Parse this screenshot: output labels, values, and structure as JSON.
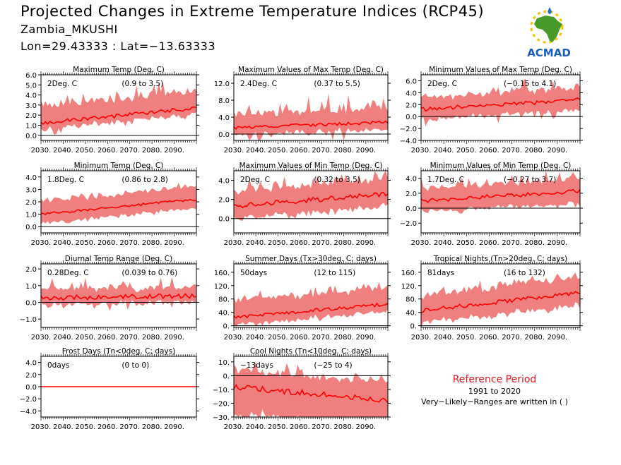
{
  "header": {
    "title": "Projected Changes in Extreme Temperature Indices (RCP45)",
    "region": "Zambia_MKUSHI",
    "coords": "Lon=29.43333 : Lat=−13.63333"
  },
  "logo": {
    "text": "ACMAD",
    "icon": "africa-map-logo"
  },
  "reference": {
    "title": "Reference Period",
    "years": "1991 to 2020",
    "note": "Very−Likely−Ranges are written in ( )"
  },
  "colors": {
    "band": "#f08080",
    "line": "#ff0000",
    "frame": "#000000",
    "reference_text": "#e8141c"
  },
  "chart_data": [
    {
      "type": "area",
      "title": "Maximum Temp (Deg. C)",
      "stat": "2Deg. C",
      "range": "(0.9 to 3.5)",
      "xlim": [
        2030,
        2100
      ],
      "ylim": [
        -0.5,
        6.0
      ],
      "yticks": [
        "6.0",
        "5.0",
        "4.0",
        "3.0",
        "2.0",
        "1.0",
        "0.0"
      ],
      "ytick_values": [
        6,
        5,
        4,
        3,
        2,
        1,
        0
      ],
      "xticks": [
        "2030.",
        "2040.",
        "2050.",
        "2060.",
        "2070.",
        "2080.",
        "2090."
      ],
      "series": [
        {
          "start": 1.2,
          "end": 2.7,
          "band_low": 0.5,
          "band_high": 1.6,
          "noise": 0.18,
          "spike_amp": 1.0
        }
      ]
    },
    {
      "type": "area",
      "title": "Maximum Values of Max Temp (Deg. C)",
      "stat": "2.4Deg. C",
      "range": "(0.37 to 5.5)",
      "xlim": [
        2030,
        2100
      ],
      "ylim": [
        -1.5,
        14.0
      ],
      "yticks": [
        "12.0",
        "8.0",
        "4.0",
        "0.0"
      ],
      "ytick_values": [
        12,
        8,
        4,
        0
      ],
      "xticks": [
        "2030.",
        "2040.",
        "2050.",
        "2060.",
        "2070.",
        "2080.",
        "2090."
      ],
      "series": [
        {
          "start": 1.5,
          "end": 2.8,
          "band_low": 1.2,
          "band_high": 2.5,
          "noise": 0.35,
          "spike_amp": 5.0
        }
      ]
    },
    {
      "type": "area",
      "title": "Minimum Values of Max Temp (Deg. C)",
      "stat": "2Deg. C",
      "range": "(−0.15 to 4.1)",
      "xlim": [
        2030,
        2100
      ],
      "ylim": [
        -4.0,
        7.0
      ],
      "yticks": [
        "6.0",
        "4.0",
        "2.0",
        "0.0",
        "−2.0",
        "−4.0"
      ],
      "ytick_values": [
        6,
        4,
        2,
        0,
        -2,
        -4
      ],
      "xticks": [
        "2030.",
        "2040.",
        "2050.",
        "2060.",
        "2070.",
        "2080.",
        "2090."
      ],
      "series": [
        {
          "start": 1.2,
          "end": 2.8,
          "band_low": 1.5,
          "band_high": 1.6,
          "noise": 0.35,
          "spike_amp": 2.5
        }
      ]
    },
    {
      "type": "area",
      "title": "Minimum Temp (Deg. C)",
      "stat": "1.8Deg. C",
      "range": "(0.86 to 2.8)",
      "xlim": [
        2030,
        2100
      ],
      "ylim": [
        -0.5,
        4.5
      ],
      "yticks": [
        "4.0",
        "3.0",
        "2.0",
        "1.0",
        "0.0"
      ],
      "ytick_values": [
        4,
        3,
        2,
        1,
        0
      ],
      "xticks": [
        "2030.",
        "2040.",
        "2050.",
        "2060.",
        "2070.",
        "2080.",
        "2090."
      ],
      "series": [
        {
          "start": 1.0,
          "end": 2.2,
          "band_low": 0.7,
          "band_high": 1.0,
          "noise": 0.1,
          "spike_amp": 0.3
        }
      ]
    },
    {
      "type": "area",
      "title": "Maximum Values of Min Temp (Deg. C)",
      "stat": "2Deg. C",
      "range": "(0.32 to 3.5)",
      "xlim": [
        2030,
        2100
      ],
      "ylim": [
        -1.5,
        5.0
      ],
      "yticks": [
        "4.0",
        "2.0",
        "0.0"
      ],
      "ytick_values": [
        4,
        2,
        0
      ],
      "xticks": [
        "2030.",
        "2040.",
        "2050.",
        "2060.",
        "2070.",
        "2080.",
        "2090."
      ],
      "series": [
        {
          "start": 1.3,
          "end": 2.6,
          "band_low": 1.2,
          "band_high": 1.5,
          "noise": 0.25,
          "spike_amp": 1.0
        }
      ]
    },
    {
      "type": "area",
      "title": "Minimum Values of Min Temp (Deg. C)",
      "stat": "1.7Deg. C",
      "range": "(−0.27 to 3.7)",
      "xlim": [
        2030,
        2100
      ],
      "ylim": [
        -3.3,
        5.0
      ],
      "yticks": [
        "4.0",
        "2.0",
        "0.0",
        "−2.0"
      ],
      "ytick_values": [
        4,
        2,
        0,
        -2
      ],
      "xticks": [
        "2030.",
        "2040.",
        "2050.",
        "2060.",
        "2070.",
        "2080.",
        "2090."
      ],
      "series": [
        {
          "start": 1.0,
          "end": 2.3,
          "band_low": 1.4,
          "band_high": 1.5,
          "noise": 0.3,
          "spike_amp": 1.5
        }
      ]
    },
    {
      "type": "area",
      "title": "Diurnal Temp Range (Deg. C)",
      "stat": "0.28Deg. C",
      "range": "(0.039 to 0.76)",
      "xlim": [
        2030,
        2100
      ],
      "ylim": [
        -1.5,
        2.3
      ],
      "yticks": [
        "2.0",
        "1.0",
        "0.0",
        "−1.0"
      ],
      "ytick_values": [
        2,
        1,
        0,
        -1
      ],
      "xticks": [
        "2030.",
        "2040.",
        "2050.",
        "2060.",
        "2070.",
        "2080.",
        "2090."
      ],
      "series": [
        {
          "start": 0.25,
          "end": 0.4,
          "band_low": 0.3,
          "band_high": 0.4,
          "noise": 0.15,
          "spike_amp": 0.9
        }
      ]
    },
    {
      "type": "area",
      "title": "Summer Days (Tx>30deg. C; days)",
      "stat": "50days",
      "range": "(12 to 115)",
      "xlim": [
        2030,
        2100
      ],
      "ylim": [
        -5,
        185
      ],
      "yticks": [
        "160.",
        "120.",
        "80.",
        "40.",
        "0."
      ],
      "ytick_values": [
        160,
        120,
        80,
        40,
        0
      ],
      "xticks": [
        "2030.",
        "2040.",
        "2050.",
        "2060.",
        "2070.",
        "2080.",
        "2090."
      ],
      "series": [
        {
          "start": 25,
          "end": 65,
          "band_low": 20,
          "band_high": 45,
          "noise": 5,
          "spike_amp": 25
        }
      ]
    },
    {
      "type": "area",
      "title": "Tropical Nights (Tn>20deg. C; days)",
      "stat": "81days",
      "range": "(16 to 132)",
      "xlim": [
        2030,
        2100
      ],
      "ylim": [
        -5,
        185
      ],
      "yticks": [
        "160.",
        "120.",
        "80.",
        "40.",
        "0."
      ],
      "ytick_values": [
        160,
        120,
        80,
        40,
        0
      ],
      "xticks": [
        "2030.",
        "2040.",
        "2050.",
        "2060.",
        "2070.",
        "2080.",
        "2090."
      ],
      "series": [
        {
          "start": 45,
          "end": 100,
          "band_low": 35,
          "band_high": 45,
          "noise": 6,
          "spike_amp": 20
        }
      ]
    },
    {
      "type": "area",
      "title": "Frost Days (Tn<0deg. C; days)",
      "stat": "0days",
      "range": "(0 to 0)",
      "xlim": [
        2030,
        2100
      ],
      "ylim": [
        -5.0,
        5.0
      ],
      "yticks": [
        "4.0",
        "2.0",
        "0.0",
        "−2.0",
        "−4.0"
      ],
      "ytick_values": [
        4,
        2,
        0,
        -2,
        -4
      ],
      "xticks": [
        "2030.",
        "2040.",
        "2050.",
        "2060.",
        "2070.",
        "2080.",
        "2090."
      ],
      "series": [
        {
          "start": 0,
          "end": 0,
          "band_low": 0,
          "band_high": 0,
          "noise": 0,
          "spike_amp": 0
        }
      ]
    },
    {
      "type": "area",
      "title": "Cool Nights (Tn<10deg. C; days)",
      "stat": "−13days",
      "range": "(−25 to 4)",
      "xlim": [
        2030,
        2100
      ],
      "ylim": [
        -30,
        14
      ],
      "yticks": [
        "10.",
        "0.",
        "−10.",
        "−20.",
        "−30."
      ],
      "ytick_values": [
        10,
        0,
        -10,
        -20,
        -30
      ],
      "xticks": [
        "2030.",
        "2040.",
        "2050.",
        "2060.",
        "2070.",
        "2080.",
        "2090."
      ],
      "series": [
        {
          "start": -8,
          "end": -18,
          "band_low": 20,
          "band_high": 12,
          "noise": 2,
          "spike_amp": 6
        }
      ]
    }
  ]
}
